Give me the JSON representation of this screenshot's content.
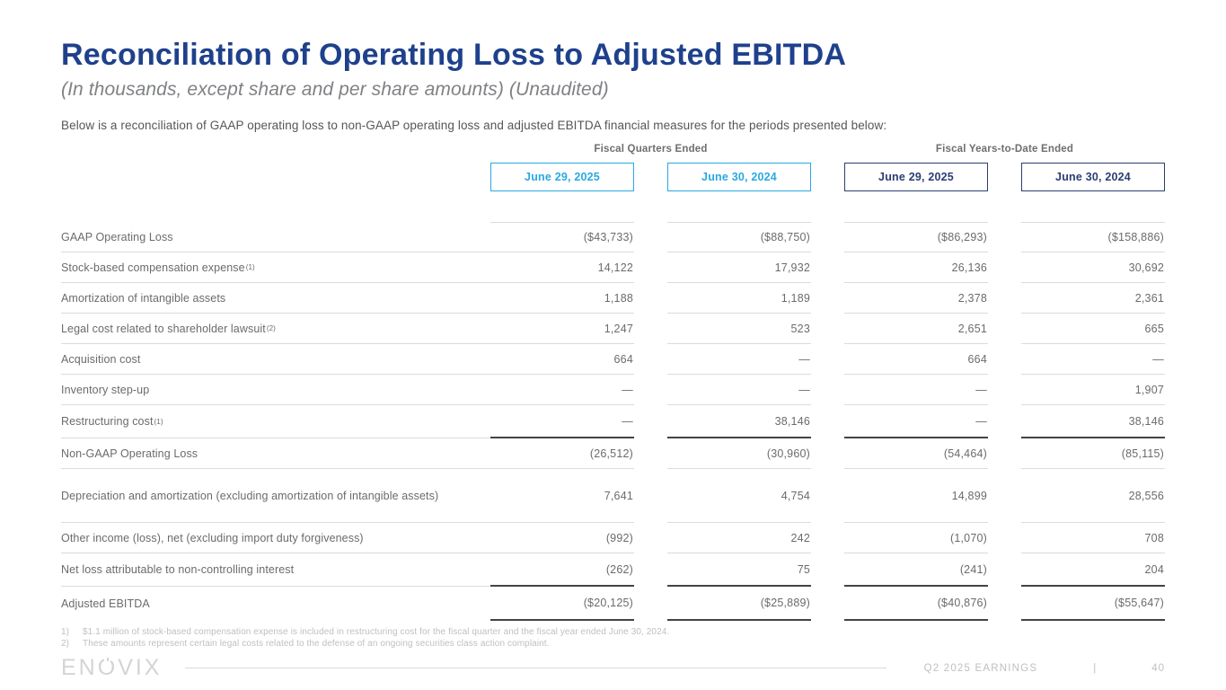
{
  "page": {
    "title": "Reconciliation of Operating Loss to Adjusted EBITDA",
    "subtitle": "(In thousands, except share and per share amounts) (Unaudited)",
    "intro": "Below is a reconciliation of GAAP operating loss to non-GAAP operating loss and adjusted EBITDA financial measures for the periods presented below:"
  },
  "table": {
    "groups": [
      {
        "label": "Fiscal Quarters Ended"
      },
      {
        "label": "Fiscal Years-to-Date Ended"
      }
    ],
    "columns": [
      {
        "label": "June 29, 2025",
        "style": "light"
      },
      {
        "label": "June 30, 2024",
        "style": "light"
      },
      {
        "label": "June 29, 2025",
        "style": "dark"
      },
      {
        "label": "June 30, 2024",
        "style": "dark"
      }
    ],
    "rows": [
      {
        "label": "GAAP Operating Loss",
        "sup": "",
        "values": [
          "($43,733)",
          "($88,750)",
          "($86,293)",
          "($158,886)"
        ]
      },
      {
        "label": "Stock-based compensation expense",
        "sup": "(1)",
        "values": [
          "14,122",
          "17,932",
          "26,136",
          "30,692"
        ]
      },
      {
        "label": "Amortization of intangible assets",
        "sup": "",
        "values": [
          "1,188",
          "1,189",
          "2,378",
          "2,361"
        ]
      },
      {
        "label": "Legal cost related to shareholder lawsuit",
        "sup": "(2)",
        "values": [
          "1,247",
          "523",
          "2,651",
          "665"
        ]
      },
      {
        "label": "Acquisition cost",
        "sup": "",
        "values": [
          "664",
          "—",
          "664",
          "—"
        ]
      },
      {
        "label": "Inventory step-up",
        "sup": "",
        "values": [
          "—",
          "—",
          "—",
          "1,907"
        ]
      },
      {
        "label": "Restructuring cost",
        "sup": "(1)",
        "values": [
          "—",
          "38,146",
          "—",
          "38,146"
        ],
        "rule": "dark"
      },
      {
        "label": "Non-GAAP Operating Loss",
        "sup": "",
        "values": [
          "(26,512)",
          "(30,960)",
          "(54,464)",
          "(85,115)"
        ]
      },
      {
        "label": "Depreciation and amortization (excluding amortization of intangible assets)",
        "sup": "",
        "values": [
          "7,641",
          "4,754",
          "14,899",
          "28,556"
        ],
        "tall": true
      },
      {
        "label": "Other income (loss), net (excluding import duty forgiveness)",
        "sup": "",
        "values": [
          "(992)",
          "242",
          "(1,070)",
          "708"
        ]
      },
      {
        "label": "Net loss attributable to non-controlling interest",
        "sup": "",
        "values": [
          "(262)",
          "75",
          "(241)",
          "204"
        ],
        "rule": "dark"
      },
      {
        "label": "Adjusted EBITDA",
        "sup": "",
        "values": [
          "($20,125)",
          "($25,889)",
          "($40,876)",
          "($55,647)"
        ],
        "last": true
      }
    ]
  },
  "footnotes": [
    {
      "num": "1)",
      "text": "$1.1 million of stock-based compensation expense is included in restructuring cost for the fiscal quarter and the fiscal year ended June 30, 2024."
    },
    {
      "num": "2)",
      "text": "These amounts represent certain legal costs related to the defense of an ongoing securities class action complaint."
    }
  ],
  "footer": {
    "logo": "enovix",
    "label": "Q2 2025 EARNINGS",
    "separator": "|",
    "page_number": "40"
  },
  "colors": {
    "title_blue": "#1f418c",
    "accent_light_blue": "#29a9e1",
    "accent_navy": "#2b3e72",
    "body_gray": "#6a6b6e",
    "rule_light": "#dadbdc",
    "rule_dark": "#424345",
    "muted_gray": "#bec0c2"
  }
}
